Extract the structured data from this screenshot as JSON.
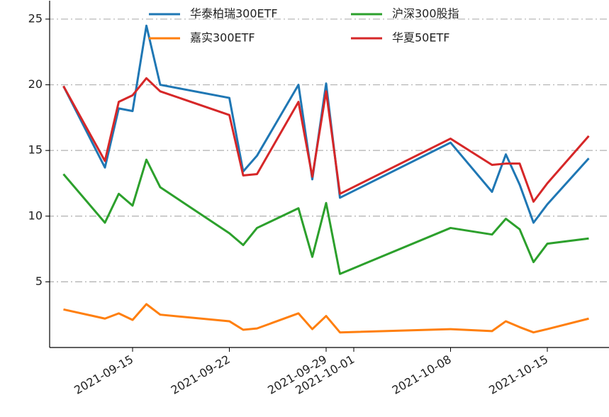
{
  "chart_data": {
    "type": "line",
    "x": [
      "2021-09-10",
      "2021-09-13",
      "2021-09-14",
      "2021-09-15",
      "2021-09-16",
      "2021-09-17",
      "2021-09-22",
      "2021-09-23",
      "2021-09-24",
      "2021-09-27",
      "2021-09-28",
      "2021-09-29",
      "2021-09-30",
      "2021-10-08",
      "2021-10-11",
      "2021-10-12",
      "2021-10-13",
      "2021-10-14",
      "2021-10-15",
      "2021-10-18"
    ],
    "series": [
      {
        "name": "华泰柏瑞300ETF",
        "color": "#1f77b4",
        "values": [
          19.9,
          13.7,
          18.2,
          18.0,
          24.5,
          20.0,
          19.0,
          13.4,
          14.6,
          20.0,
          12.8,
          20.1,
          11.4,
          15.6,
          11.85,
          14.7,
          12.4,
          9.5,
          10.9,
          14.4
        ]
      },
      {
        "name": "嘉实300ETF",
        "color": "#ff7f0e",
        "values": [
          2.9,
          2.2,
          2.6,
          2.1,
          3.3,
          2.5,
          2.0,
          1.35,
          1.45,
          2.6,
          1.4,
          2.4,
          1.15,
          1.4,
          1.25,
          2.0,
          1.55,
          1.15,
          1.4,
          2.2
        ]
      },
      {
        "name": "沪深300股指",
        "color": "#2ca02c",
        "values": [
          13.2,
          9.5,
          11.7,
          10.8,
          14.3,
          12.2,
          8.7,
          7.8,
          9.1,
          10.6,
          6.9,
          11.0,
          5.6,
          9.1,
          8.6,
          9.8,
          9.0,
          6.5,
          7.9,
          8.3
        ]
      },
      {
        "name": "华夏50ETF",
        "color": "#d62728",
        "values": [
          19.9,
          14.2,
          18.7,
          19.2,
          20.5,
          19.5,
          17.7,
          13.1,
          13.2,
          18.7,
          13.0,
          19.5,
          11.7,
          15.9,
          13.9,
          14.0,
          14.0,
          11.1,
          12.5,
          16.1
        ]
      }
    ],
    "xlim": [
      "2021-09-09",
      "2021-10-19"
    ],
    "xticks": [
      "2021-09-15",
      "2021-09-22",
      "2021-09-29",
      "2021-10-01",
      "2021-10-08",
      "2021-10-15"
    ],
    "ylim": [
      0,
      26.4
    ],
    "yticks": [
      5,
      10,
      15,
      20,
      25
    ],
    "grid": true,
    "legend": "upper center"
  }
}
